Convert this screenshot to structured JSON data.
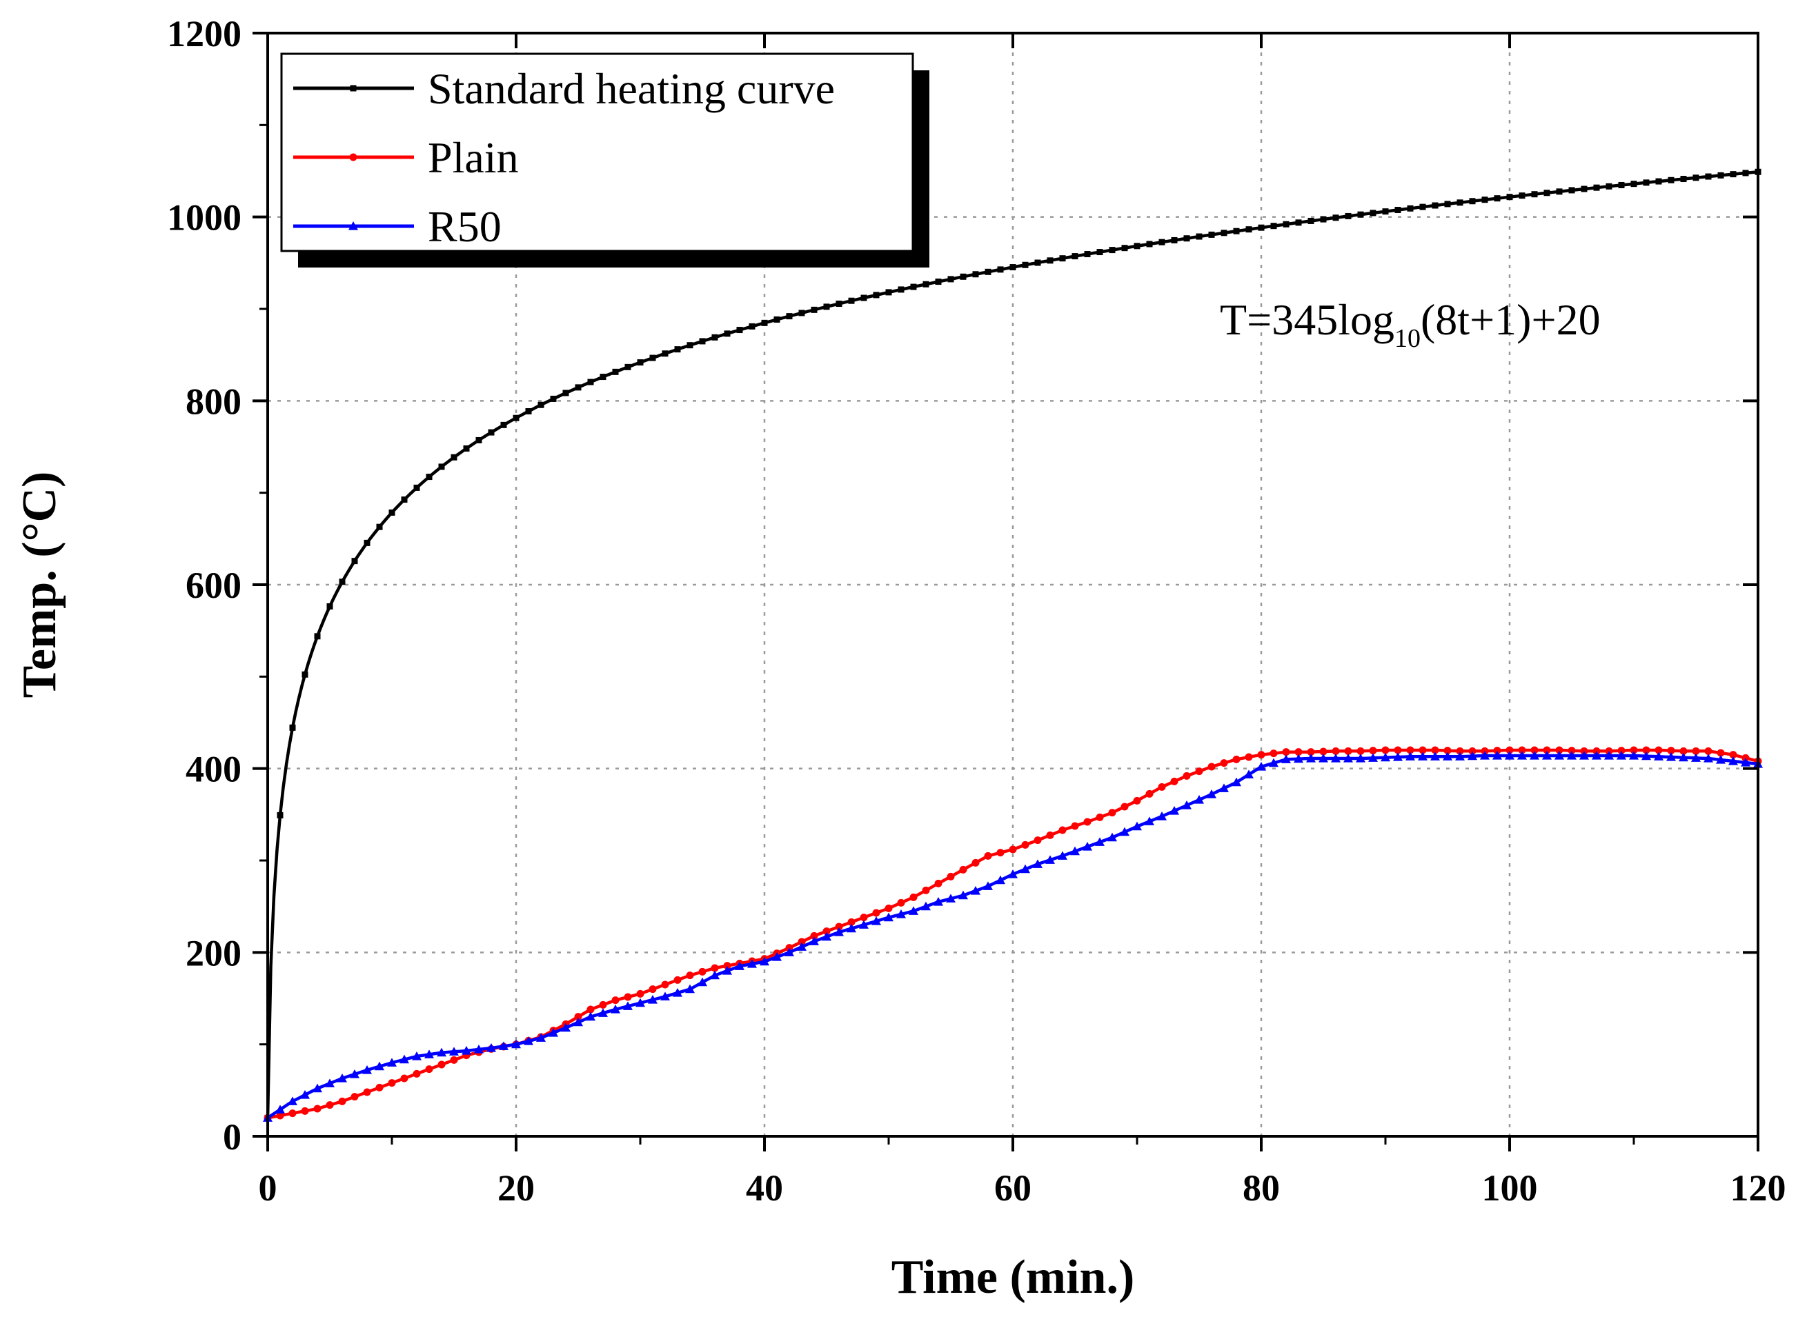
{
  "chart_data": {
    "type": "line",
    "title": "",
    "xlabel": "Time (min.)",
    "ylabel": "Temp. (°C)",
    "xlim": [
      0,
      120
    ],
    "ylim": [
      0,
      1200
    ],
    "xticks": [
      0,
      20,
      40,
      60,
      80,
      100,
      120
    ],
    "yticks": [
      0,
      200,
      400,
      600,
      800,
      1000,
      1200
    ],
    "grid": true,
    "legend_position": "top-left",
    "annotation": {
      "prefix": "T=345log",
      "subscript": "10",
      "suffix": "(8t+1)+20"
    },
    "series": [
      {
        "name": "Standard heating curve",
        "color": "#000000",
        "marker": "square",
        "formula": "T=345log10(8t+1)+20",
        "x": [
          0,
          0.5,
          1,
          2,
          3,
          4,
          5,
          6,
          8,
          10,
          12,
          15,
          20,
          25,
          30,
          40,
          50,
          60,
          70,
          80,
          90,
          100,
          110,
          120
        ],
        "values": [
          20,
          261,
          349,
          445,
          502,
          544,
          576,
          603,
          645,
          678,
          705,
          739,
          781,
          815,
          842,
          885,
          918,
          945,
          968,
          988,
          1006,
          1022,
          1036,
          1049
        ]
      },
      {
        "name": "Plain",
        "color": "#ff0000",
        "marker": "circle",
        "x": [
          0,
          2,
          4,
          6,
          8,
          10,
          12,
          14,
          16,
          18,
          20,
          22,
          24,
          26,
          28,
          30,
          32,
          34,
          36,
          38,
          40,
          42,
          44,
          46,
          48,
          50,
          52,
          54,
          56,
          58,
          60,
          62,
          64,
          66,
          68,
          70,
          72,
          74,
          76,
          78,
          80,
          82,
          84,
          86,
          88,
          90,
          92,
          94,
          96,
          98,
          100,
          102,
          104,
          106,
          108,
          110,
          112,
          114,
          116,
          118,
          120
        ],
        "values": [
          20,
          25,
          30,
          38,
          48,
          58,
          68,
          78,
          88,
          95,
          100,
          108,
          122,
          138,
          148,
          155,
          165,
          175,
          183,
          188,
          193,
          205,
          218,
          228,
          238,
          248,
          260,
          275,
          290,
          305,
          312,
          322,
          333,
          342,
          352,
          365,
          380,
          392,
          402,
          410,
          415,
          418,
          418,
          419,
          419,
          420,
          420,
          420,
          419,
          419,
          420,
          420,
          420,
          419,
          419,
          420,
          420,
          419,
          419,
          415,
          408
        ]
      },
      {
        "name": "R50",
        "color": "#0000ff",
        "marker": "triangle",
        "x": [
          0,
          2,
          4,
          6,
          8,
          10,
          12,
          14,
          16,
          18,
          20,
          22,
          24,
          26,
          28,
          30,
          32,
          34,
          36,
          38,
          40,
          42,
          44,
          46,
          48,
          50,
          52,
          54,
          56,
          58,
          60,
          62,
          64,
          66,
          68,
          70,
          72,
          74,
          76,
          78,
          80,
          82,
          84,
          86,
          88,
          90,
          92,
          94,
          96,
          98,
          100,
          102,
          104,
          106,
          108,
          110,
          112,
          114,
          116,
          118,
          120
        ],
        "values": [
          20,
          38,
          52,
          63,
          72,
          80,
          87,
          91,
          93,
          96,
          100,
          107,
          118,
          130,
          138,
          145,
          152,
          160,
          175,
          185,
          190,
          200,
          212,
          222,
          230,
          238,
          245,
          255,
          262,
          272,
          285,
          296,
          305,
          315,
          325,
          337,
          348,
          360,
          372,
          385,
          402,
          410,
          411,
          411,
          411,
          412,
          413,
          413,
          413,
          414,
          414,
          414,
          414,
          414,
          414,
          414,
          413,
          412,
          411,
          408,
          405
        ]
      }
    ]
  }
}
